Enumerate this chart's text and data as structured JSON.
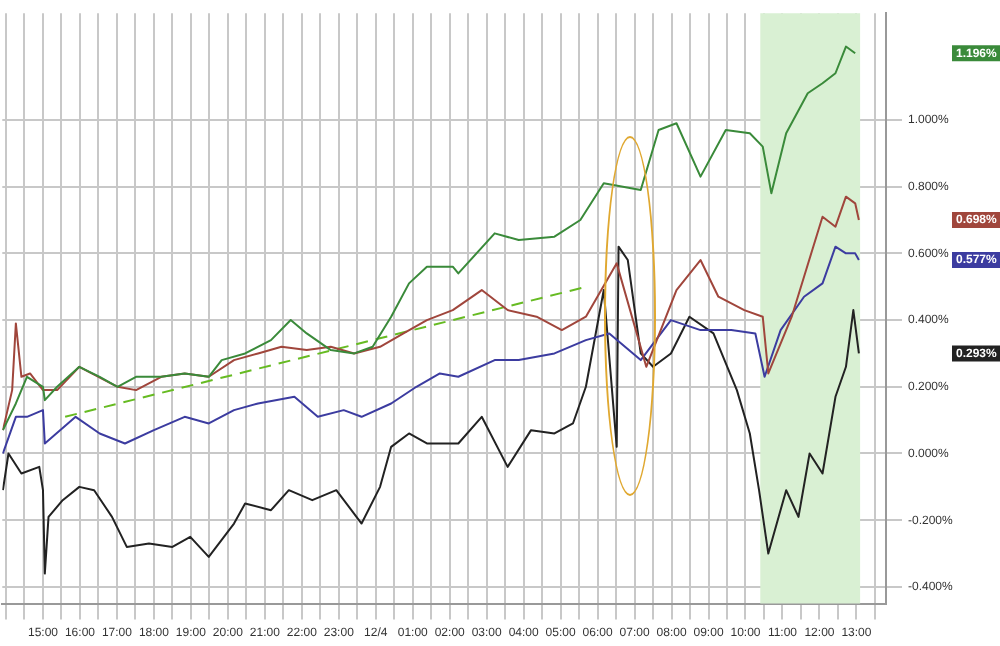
{
  "chart_data": {
    "type": "line",
    "grid": true,
    "legend": false,
    "marker": "none",
    "line_style": "solid",
    "xlim": [
      "--12-03T13:54",
      "--12-04T13:48"
    ],
    "ylim": [
      -0.45,
      1.32
    ],
    "xticks": [
      {
        "value": "--12-03T14:00",
        "label": null
      },
      {
        "value": "--12-03T14:30",
        "label": null
      },
      {
        "value": "--12-03T15:00",
        "label": "15:00"
      },
      {
        "value": "--12-03T15:30",
        "label": null
      },
      {
        "value": "--12-03T16:00",
        "label": "16:00"
      },
      {
        "value": "--12-03T16:30",
        "label": null
      },
      {
        "value": "--12-03T17:00",
        "label": "17:00"
      },
      {
        "value": "--12-03T17:30",
        "label": null
      },
      {
        "value": "--12-03T18:00",
        "label": "18:00"
      },
      {
        "value": "--12-03T18:30",
        "label": null
      },
      {
        "value": "--12-03T19:00",
        "label": "19:00"
      },
      {
        "value": "--12-03T19:30",
        "label": null
      },
      {
        "value": "--12-03T20:00",
        "label": "20:00"
      },
      {
        "value": "--12-03T20:30",
        "label": null
      },
      {
        "value": "--12-03T21:00",
        "label": "21:00"
      },
      {
        "value": "--12-03T21:30",
        "label": null
      },
      {
        "value": "--12-03T22:00",
        "label": "22:00"
      },
      {
        "value": "--12-03T22:30",
        "label": null
      },
      {
        "value": "--12-03T23:00",
        "label": "23:00"
      },
      {
        "value": "--12-03T23:30",
        "label": null
      },
      {
        "value": "--12-04T00:00",
        "label": "12/4"
      },
      {
        "value": "--12-04T00:30",
        "label": null
      },
      {
        "value": "--12-04T01:00",
        "label": "01:00"
      },
      {
        "value": "--12-04T01:30",
        "label": null
      },
      {
        "value": "--12-04T02:00",
        "label": "02:00"
      },
      {
        "value": "--12-04T02:30",
        "label": null
      },
      {
        "value": "--12-04T03:00",
        "label": "03:00"
      },
      {
        "value": "--12-04T03:30",
        "label": null
      },
      {
        "value": "--12-04T04:00",
        "label": "04:00"
      },
      {
        "value": "--12-04T04:30",
        "label": null
      },
      {
        "value": "--12-04T05:00",
        "label": "05:00"
      },
      {
        "value": "--12-04T05:30",
        "label": null
      },
      {
        "value": "--12-04T06:00",
        "label": "06:00"
      },
      {
        "value": "--12-04T06:30",
        "label": null
      },
      {
        "value": "--12-04T07:00",
        "label": "07:00"
      },
      {
        "value": "--12-04T07:30",
        "label": null
      },
      {
        "value": "--12-04T08:00",
        "label": "08:00"
      },
      {
        "value": "--12-04T08:30",
        "label": null
      },
      {
        "value": "--12-04T09:00",
        "label": "09:00"
      },
      {
        "value": "--12-04T09:30",
        "label": null
      },
      {
        "value": "--12-04T10:00",
        "label": "10:00"
      },
      {
        "value": "--12-04T10:30",
        "label": null
      },
      {
        "value": "--12-04T11:00",
        "label": "11:00"
      },
      {
        "value": "--12-04T11:30",
        "label": null
      },
      {
        "value": "--12-04T12:00",
        "label": "12:00"
      },
      {
        "value": "--12-04T12:30",
        "label": null
      },
      {
        "value": "--12-04T13:00",
        "label": "13:00"
      },
      {
        "value": "--12-04T13:30",
        "label": null
      }
    ],
    "yticks": [
      {
        "value": -0.4,
        "label": "-0.400%"
      },
      {
        "value": -0.2,
        "label": "-0.200%"
      },
      {
        "value": 0,
        "label": "0.000%"
      },
      {
        "value": 0.2,
        "label": "0.200%"
      },
      {
        "value": 0.4,
        "label": "0.400%"
      },
      {
        "value": 0.6,
        "label": "0.600%"
      },
      {
        "value": 0.8,
        "label": "0.800%"
      },
      {
        "value": 1,
        "label": "1.000%"
      }
    ],
    "bands": [
      {
        "axis": "x",
        "from": "--12-04T10:24",
        "to": "--12-04T13:06",
        "color": "#d9f0d3"
      }
    ],
    "series": [
      {
        "color": "#3a8a3a",
        "x": [
          "--12-03T13:55",
          "--12-03T14:16",
          "--12-03T14:34",
          "--12-03T15:00",
          "--12-03T15:03",
          "--12-03T15:23",
          "--12-03T15:59",
          "--12-03T16:32",
          "--12-03T17:01",
          "--12-03T17:31",
          "--12-03T18:12",
          "--12-03T18:50",
          "--12-03T19:29",
          "--12-03T19:50",
          "--12-03T20:28",
          "--12-03T21:10",
          "--12-03T21:42",
          "--12-03T22:08",
          "--12-03T22:47",
          "--12-03T23:25",
          "--12-03T23:55",
          "--12-04T00:25",
          "--12-04T00:54",
          "--12-04T01:23",
          "--12-04T02:05",
          "--12-04T02:14",
          "--12-04T03:13",
          "--12-04T03:52",
          "--12-04T04:50",
          "--12-04T05:32",
          "--12-04T06:10",
          "--12-04T07:10",
          "--12-04T07:39",
          "--12-04T08:08",
          "--12-04T08:47",
          "--12-04T09:28",
          "--12-04T10:07",
          "--12-04T10:28",
          "--12-04T10:42",
          "--12-04T11:06",
          "--12-04T11:41",
          "--12-04T12:05",
          "--12-04T12:26",
          "--12-04T12:43",
          "--12-04T12:58"
        ],
        "values": [
          0.07,
          0.15,
          0.23,
          0.2,
          0.16,
          0.2,
          0.26,
          0.23,
          0.2,
          0.23,
          0.23,
          0.24,
          0.23,
          0.28,
          0.3,
          0.34,
          0.4,
          0.36,
          0.31,
          0.3,
          0.32,
          0.41,
          0.51,
          0.56,
          0.56,
          0.54,
          0.66,
          0.64,
          0.65,
          0.7,
          0.81,
          0.79,
          0.97,
          0.99,
          0.83,
          0.97,
          0.96,
          0.92,
          0.78,
          0.96,
          1.08,
          1.11,
          1.14,
          1.22,
          1.2
        ]
      },
      {
        "color": "#a0463c",
        "x": [
          "--12-03T13:55",
          "--12-03T14:10",
          "--12-03T14:16",
          "--12-03T14:25",
          "--12-03T14:39",
          "--12-03T15:00",
          "--12-03T15:23",
          "--12-03T15:59",
          "--12-03T17:01",
          "--12-03T17:31",
          "--12-03T18:12",
          "--12-03T18:50",
          "--12-03T19:29",
          "--12-03T20:10",
          "--12-03T20:49",
          "--12-03T21:27",
          "--12-03T22:08",
          "--12-03T22:47",
          "--12-03T23:25",
          "--12-04T00:07",
          "--12-04T00:45",
          "--12-04T01:23",
          "--12-04T02:05",
          "--12-04T02:52",
          "--12-04T03:34",
          "--12-04T04:21",
          "--12-04T05:02",
          "--12-04T05:41",
          "--12-04T06:31",
          "--12-04T07:19",
          "--12-04T08:08",
          "--12-04T08:47",
          "--12-04T09:16",
          "--12-04T09:58",
          "--12-04T10:28",
          "--12-04T10:37",
          "--12-04T11:15",
          "--12-04T11:35",
          "--12-04T12:05",
          "--12-04T12:26",
          "--12-04T12:43",
          "--12-04T12:58",
          "--12-04T13:04"
        ],
        "values": [
          0.07,
          0.19,
          0.39,
          0.23,
          0.24,
          0.19,
          0.19,
          0.26,
          0.2,
          0.19,
          0.23,
          0.24,
          0.23,
          0.28,
          0.3,
          0.32,
          0.31,
          0.32,
          0.3,
          0.32,
          0.36,
          0.4,
          0.43,
          0.49,
          0.43,
          0.41,
          0.37,
          0.41,
          0.57,
          0.26,
          0.49,
          0.58,
          0.47,
          0.43,
          0.41,
          0.24,
          0.41,
          0.53,
          0.71,
          0.68,
          0.77,
          0.75,
          0.7
        ]
      },
      {
        "color": "#3c3ca0",
        "x": [
          "--12-03T13:55",
          "--12-03T14:16",
          "--12-03T14:34",
          "--12-03T15:00",
          "--12-03T15:03",
          "--12-03T15:53",
          "--12-03T16:32",
          "--12-03T17:13",
          "--12-03T18:00",
          "--12-03T18:50",
          "--12-03T19:29",
          "--12-03T20:10",
          "--12-03T20:49",
          "--12-03T21:48",
          "--12-03T22:26",
          "--12-03T23:08",
          "--12-03T23:37",
          "--12-04T00:25",
          "--12-04T01:06",
          "--12-04T01:44",
          "--12-04T02:14",
          "--12-04T03:13",
          "--12-04T03:52",
          "--12-04T04:50",
          "--12-04T05:41",
          "--12-04T06:19",
          "--12-04T07:10",
          "--12-04T07:59",
          "--12-04T08:47",
          "--12-04T09:37",
          "--12-04T10:16",
          "--12-04T10:31",
          "--12-04T10:57",
          "--12-04T11:35",
          "--12-04T12:05",
          "--12-04T12:26",
          "--12-04T12:43",
          "--12-04T12:58",
          "--12-04T13:04"
        ],
        "values": [
          0.0,
          0.11,
          0.11,
          0.13,
          0.03,
          0.11,
          0.06,
          0.03,
          0.07,
          0.11,
          0.09,
          0.13,
          0.15,
          0.17,
          0.11,
          0.13,
          0.11,
          0.15,
          0.2,
          0.24,
          0.23,
          0.28,
          0.28,
          0.3,
          0.34,
          0.36,
          0.28,
          0.4,
          0.37,
          0.37,
          0.36,
          0.23,
          0.37,
          0.47,
          0.51,
          0.62,
          0.6,
          0.6,
          0.58
        ]
      },
      {
        "color": "#222222",
        "x": [
          "--12-03T13:55",
          "--12-03T14:04",
          "--12-03T14:25",
          "--12-03T14:54",
          "--12-03T15:00",
          "--12-03T15:03",
          "--12-03T15:09",
          "--12-03T15:32",
          "--12-03T15:59",
          "--12-03T16:23",
          "--12-03T16:52",
          "--12-03T17:16",
          "--12-03T17:52",
          "--12-03T18:30",
          "--12-03T18:59",
          "--12-03T19:29",
          "--12-03T20:10",
          "--12-03T20:28",
          "--12-03T21:10",
          "--12-03T21:39",
          "--12-03T22:17",
          "--12-03T22:56",
          "--12-03T23:37",
          "--12-04T00:07",
          "--12-04T00:25",
          "--12-04T00:54",
          "--12-04T01:23",
          "--12-04T02:14",
          "--12-04T02:52",
          "--12-04T03:34",
          "--12-04T04:12",
          "--12-04T04:50",
          "--12-04T05:20",
          "--12-04T05:41",
          "--12-04T06:10",
          "--12-04T06:31",
          "--12-04T06:34",
          "--12-04T06:49",
          "--12-04T07:10",
          "--12-04T07:30",
          "--12-04T07:59",
          "--12-04T08:29",
          "--12-04T09:08",
          "--12-04T09:46",
          "--12-04T10:07",
          "--12-04T10:22",
          "--12-04T10:37",
          "--12-04T11:06",
          "--12-04T11:26",
          "--12-04T11:44",
          "--12-04T12:05",
          "--12-04T12:26",
          "--12-04T12:43",
          "--12-04T12:55",
          "--12-04T13:04"
        ],
        "values": [
          -0.11,
          0,
          -0.06,
          -0.04,
          -0.11,
          -0.36,
          -0.19,
          -0.14,
          -0.1,
          -0.11,
          -0.19,
          -0.28,
          -0.27,
          -0.28,
          -0.25,
          -0.31,
          -0.21,
          -0.15,
          -0.17,
          -0.11,
          -0.14,
          -0.11,
          -0.21,
          -0.1,
          0.02,
          0.06,
          0.03,
          0.03,
          0.11,
          -0.04,
          0.07,
          0.06,
          0.09,
          0.2,
          0.49,
          0.02,
          0.62,
          0.58,
          0.3,
          0.26,
          0.3,
          0.41,
          0.36,
          0.19,
          0.06,
          -0.11,
          -0.3,
          -0.11,
          -0.19,
          0.0,
          -0.06,
          0.17,
          0.26,
          0.43,
          0.3
        ]
      },
      {
        "type": "line",
        "line_style": "dashed",
        "color": "#66bb22",
        "x": [
          "--12-03T15:36",
          "--12-04T05:42"
        ],
        "values": [
          0.11,
          0.5
        ]
      }
    ],
    "annotations": [
      "1.196%",
      "0.698%",
      "0.577%",
      "0.293%"
    ]
  }
}
